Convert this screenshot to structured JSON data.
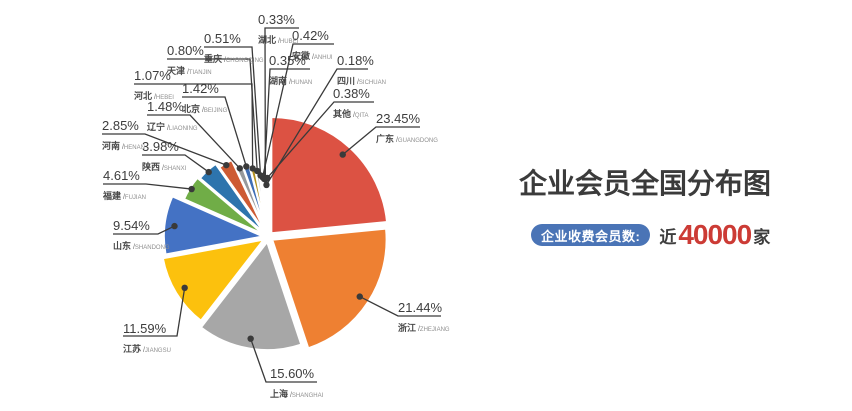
{
  "title": "企业会员全国分布图",
  "stat": {
    "badge_label": "企业收费会员数:",
    "prefix": "近",
    "number": "40000",
    "suffix": "家",
    "badge_color": "#4a74b6",
    "number_color": "#cc3b35"
  },
  "chart_data": {
    "type": "pie",
    "variant": "rose-radius",
    "unit": "%",
    "total": 100,
    "start_angle_deg": 0,
    "direction": "clockwise",
    "legend_position": "none",
    "line_color": "#3a3a3a",
    "slices": [
      {
        "name": "广东",
        "pinyin": "GUANGDONG",
        "value": 23.45,
        "pct_text": "23.45%",
        "color": "#dc5243"
      },
      {
        "name": "浙江",
        "pinyin": "ZHEJIANG",
        "value": 21.44,
        "pct_text": "21.44%",
        "color": "#ee8032"
      },
      {
        "name": "上海",
        "pinyin": "SHANGHAI",
        "value": 15.6,
        "pct_text": "15.60%",
        "color": "#a7a7a7"
      },
      {
        "name": "江苏",
        "pinyin": "JIANGSU",
        "value": 11.59,
        "pct_text": "11.59%",
        "color": "#fcc10d"
      },
      {
        "name": "山东",
        "pinyin": "SHANDONG",
        "value": 9.54,
        "pct_text": "9.54%",
        "color": "#4472c4"
      },
      {
        "name": "福建",
        "pinyin": "FUJIAN",
        "value": 4.61,
        "pct_text": "4.61%",
        "color": "#70ad47"
      },
      {
        "name": "陕西",
        "pinyin": "SHANXI",
        "value": 3.98,
        "pct_text": "3.98%",
        "color": "#2d74ad"
      },
      {
        "name": "河南",
        "pinyin": "HENAN",
        "value": 2.85,
        "pct_text": "2.85%",
        "color": "#cd5b34"
      },
      {
        "name": "辽宁",
        "pinyin": "LIAONING",
        "value": 1.48,
        "pct_text": "1.48%",
        "color": "#97999b"
      },
      {
        "name": "北京",
        "pinyin": "BEIJING",
        "value": 1.42,
        "pct_text": "1.42%",
        "color": "#3f6eb5"
      },
      {
        "name": "河北",
        "pinyin": "HEBEI",
        "value": 1.07,
        "pct_text": "1.07%",
        "color": "#b3901f"
      },
      {
        "name": "天津",
        "pinyin": "TIANJIN",
        "value": 0.8,
        "pct_text": "0.80%",
        "color": "#b9bfc2"
      },
      {
        "name": "重庆",
        "pinyin": "CHONGQING",
        "value": 0.51,
        "pct_text": "0.51%",
        "color": "#a08b2e"
      },
      {
        "name": "安徽",
        "pinyin": "ANHUI",
        "value": 0.42,
        "pct_text": "0.42%",
        "color": "#79b356"
      },
      {
        "name": "湖南",
        "pinyin": "HUNAN",
        "value": 0.35,
        "pct_text": "0.35%",
        "color": "#5b86c4"
      },
      {
        "name": "湖北",
        "pinyin": "HUBEI",
        "value": 0.33,
        "pct_text": "0.33%",
        "color": "#8099ab"
      },
      {
        "name": "四川",
        "pinyin": "SICHUAN",
        "value": 0.18,
        "pct_text": "0.18%",
        "color": "#c4cdd4"
      },
      {
        "name": "其他",
        "pinyin": "QITA",
        "value": 0.38,
        "pct_text": "0.38%",
        "color": "#e8c9a0"
      }
    ]
  }
}
